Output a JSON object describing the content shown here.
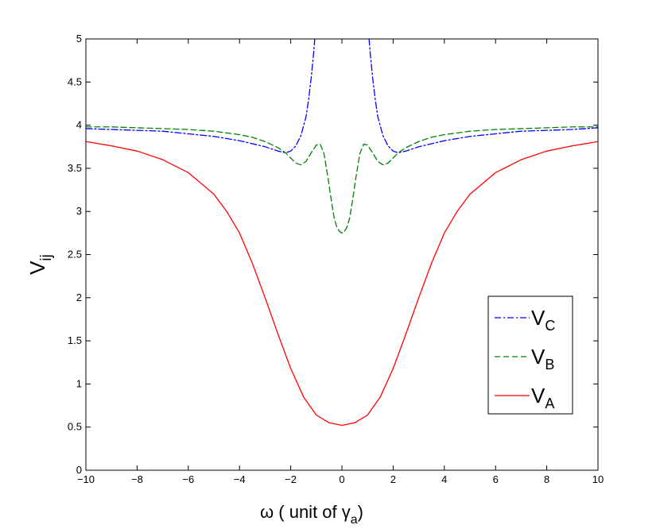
{
  "chart_data": {
    "type": "line",
    "xlabel": {
      "main": "ω ( unit of γ",
      "sub": "a",
      "close": ")"
    },
    "ylabel": {
      "main": "V",
      "sub": "ij"
    },
    "xlim": [
      -10,
      10
    ],
    "ylim": [
      0,
      5
    ],
    "xticks": [
      -10,
      -8,
      -6,
      -4,
      -2,
      0,
      2,
      4,
      6,
      8,
      10
    ],
    "xtick_labels": [
      "−10",
      "−8",
      "−6",
      "−4",
      "−2",
      "0",
      "2",
      "4",
      "6",
      "8",
      "10"
    ],
    "yticks": [
      0,
      0.5,
      1,
      1.5,
      2,
      2.5,
      3,
      3.5,
      4,
      4.5,
      5
    ],
    "ytick_labels": [
      "0",
      "0.5",
      "1",
      "1.5",
      "2",
      "2.5",
      "3",
      "3.5",
      "4",
      "4.5",
      "5"
    ],
    "grid": false,
    "legend_position": "lower-right",
    "series": [
      {
        "key": "C",
        "name_main": "V",
        "name_sub": "C",
        "color": "#0000ff",
        "style": "dash-dot",
        "segments": [
          {
            "x": [
              -10,
              -9,
              -8,
              -7,
              -6,
              -5,
              -4,
              -3,
              -2.5,
              -2.2,
              -2.0,
              -1.8,
              -1.6,
              -1.4,
              -1.3,
              -1.2,
              -1.1,
              -1.06
            ],
            "y": [
              3.96,
              3.95,
              3.94,
              3.93,
              3.9,
              3.87,
              3.82,
              3.75,
              3.7,
              3.68,
              3.7,
              3.76,
              3.88,
              4.1,
              4.3,
              4.55,
              4.85,
              5.0
            ]
          },
          {
            "x": [
              1.06,
              1.1,
              1.2,
              1.3,
              1.4,
              1.6,
              1.8,
              2.0,
              2.2,
              2.5,
              3,
              4,
              5,
              6,
              7,
              8,
              9,
              10
            ],
            "y": [
              5.0,
              4.85,
              4.55,
              4.3,
              4.1,
              3.88,
              3.76,
              3.7,
              3.68,
              3.7,
              3.75,
              3.82,
              3.87,
              3.9,
              3.93,
              3.94,
              3.95,
              3.97
            ]
          }
        ]
      },
      {
        "key": "B",
        "name_main": "V",
        "name_sub": "B",
        "color": "#008000",
        "style": "dashed",
        "segments": [
          {
            "x": [
              -10,
              -9,
              -8,
              -7,
              -6,
              -5,
              -4,
              -3.5,
              -3,
              -2.5,
              -2.2,
              -2.0,
              -1.8,
              -1.6,
              -1.4,
              -1.2,
              -1.0,
              -0.85,
              -0.7,
              -0.55,
              -0.4,
              -0.3,
              -0.2,
              -0.1,
              0,
              0.1,
              0.2,
              0.3,
              0.4,
              0.55,
              0.7,
              0.85,
              1.0,
              1.2,
              1.4,
              1.6,
              1.8,
              2.0,
              2.2,
              2.5,
              3,
              3.5,
              4,
              5,
              6,
              7,
              8,
              9,
              10
            ],
            "y": [
              3.98,
              3.98,
              3.97,
              3.96,
              3.95,
              3.93,
              3.89,
              3.86,
              3.81,
              3.74,
              3.68,
              3.62,
              3.56,
              3.54,
              3.58,
              3.68,
              3.77,
              3.78,
              3.67,
              3.4,
              3.1,
              2.92,
              2.82,
              2.77,
              2.75,
              2.77,
              2.82,
              2.92,
              3.1,
              3.4,
              3.67,
              3.78,
              3.77,
              3.68,
              3.58,
              3.54,
              3.56,
              3.62,
              3.68,
              3.74,
              3.81,
              3.86,
              3.89,
              3.93,
              3.95,
              3.96,
              3.97,
              3.98,
              3.98
            ]
          }
        ]
      },
      {
        "key": "A",
        "name_main": "V",
        "name_sub": "A",
        "color": "#ff0000",
        "style": "solid",
        "segments": [
          {
            "x": [
              -10,
              -9,
              -8,
              -7,
              -6,
              -5,
              -4.5,
              -4,
              -3.5,
              -3,
              -2.5,
              -2,
              -1.5,
              -1,
              -0.5,
              0,
              0.5,
              1,
              1.5,
              2,
              2.5,
              3,
              3.5,
              4,
              4.5,
              5,
              6,
              7,
              8,
              9,
              10
            ],
            "y": [
              3.81,
              3.76,
              3.7,
              3.6,
              3.45,
              3.2,
              3.0,
              2.75,
              2.4,
              2.0,
              1.58,
              1.18,
              0.85,
              0.64,
              0.55,
              0.52,
              0.55,
              0.64,
              0.85,
              1.18,
              1.58,
              2.0,
              2.4,
              2.75,
              3.0,
              3.2,
              3.45,
              3.6,
              3.7,
              3.76,
              3.81
            ]
          }
        ]
      }
    ]
  }
}
